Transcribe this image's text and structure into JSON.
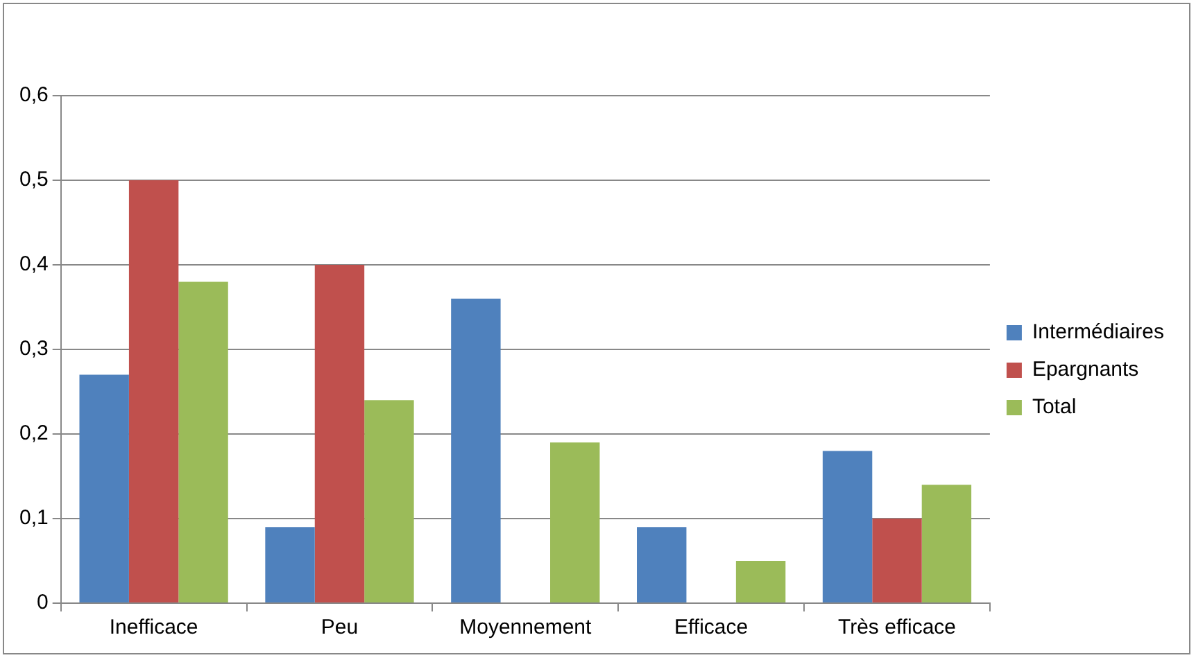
{
  "chart_data": {
    "type": "bar",
    "categories": [
      "Inefficace",
      "Peu",
      "Moyennement",
      "Efficace",
      "Très efficace"
    ],
    "series": [
      {
        "name": "Intermédiaires",
        "color": "#4f81bd",
        "values": [
          0.27,
          0.09,
          0.36,
          0.09,
          0.18
        ]
      },
      {
        "name": "Epargnants",
        "color": "#c0504d",
        "values": [
          0.5,
          0.4,
          0,
          0,
          0.1
        ]
      },
      {
        "name": "Total",
        "color": "#9bbb59",
        "values": [
          0.38,
          0.24,
          0.19,
          0.05,
          0.14
        ]
      }
    ],
    "ylim": [
      0,
      0.6
    ],
    "yticks": [
      {
        "value": 0,
        "label": "0"
      },
      {
        "value": 0.1,
        "label": "0,1"
      },
      {
        "value": 0.2,
        "label": "0,2"
      },
      {
        "value": 0.3,
        "label": "0,3"
      },
      {
        "value": 0.4,
        "label": "0,4"
      },
      {
        "value": 0.5,
        "label": "0,5"
      },
      {
        "value": 0.6,
        "label": "0,6"
      }
    ],
    "grid": "y",
    "legend": "right"
  }
}
